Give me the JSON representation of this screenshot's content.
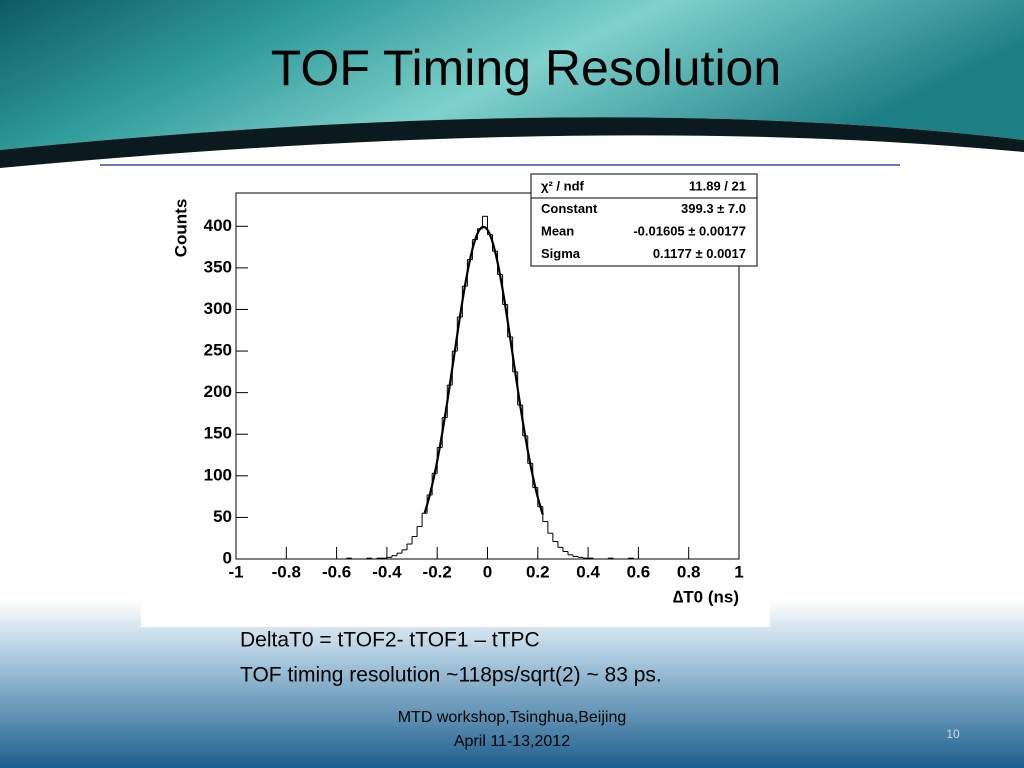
{
  "slide": {
    "title": "TOF Timing Resolution",
    "body": [
      "DeltaT0 = tTOF2- tTOF1 – tTPC",
      "TOF timing resolution ~118ps/sqrt(2) ~ 83 ps."
    ],
    "footer": [
      "MTD workshop,Tsinghua,Beijing",
      "April 11-13,2012"
    ],
    "page_number": "10"
  },
  "chart_data": {
    "type": "histogram",
    "x_label": "∆T0 (ns)",
    "y_label": "Counts",
    "bins": [
      -1,
      -0.98,
      -0.96,
      -0.94,
      -0.92,
      -0.9,
      -0.88,
      -0.86,
      -0.84,
      -0.82,
      -0.8,
      -0.78,
      -0.76,
      -0.74,
      -0.72,
      -0.7,
      -0.68,
      -0.66,
      -0.64,
      -0.62,
      -0.6,
      -0.58,
      -0.56,
      -0.54,
      -0.52,
      -0.5,
      -0.48,
      -0.46,
      -0.44,
      -0.42,
      -0.4,
      -0.38,
      -0.36,
      -0.34,
      -0.32,
      -0.3,
      -0.28,
      -0.26,
      -0.24,
      -0.22,
      -0.2,
      -0.18,
      -0.16,
      -0.14,
      -0.12,
      -0.1,
      -0.08,
      -0.06,
      -0.04,
      -0.02,
      0,
      0.02,
      0.04,
      0.06,
      0.08,
      0.1,
      0.12,
      0.14,
      0.16,
      0.18,
      0.2,
      0.22,
      0.24,
      0.26,
      0.28,
      0.3,
      0.32,
      0.34,
      0.36,
      0.38,
      0.4,
      0.42,
      0.44,
      0.46,
      0.48,
      0.5,
      0.52,
      0.54,
      0.56,
      0.58,
      0.6,
      0.62,
      0.64,
      0.66,
      0.68,
      0.7,
      0.72,
      0.74,
      0.76,
      0.78,
      0.8,
      0.82,
      0.84,
      0.86,
      0.88,
      0.9,
      0.92,
      0.94,
      0.96,
      0.98,
      1
    ],
    "values": [
      0,
      0,
      0,
      0,
      0,
      0,
      0,
      0,
      0,
      0,
      0,
      0,
      0,
      0,
      0,
      0,
      0,
      0,
      0,
      0,
      0,
      0,
      1,
      0,
      0,
      0,
      1,
      0,
      1,
      1,
      2,
      4,
      7,
      11,
      18,
      27,
      39,
      55,
      77,
      103,
      134,
      170,
      209,
      250,
      291,
      328,
      360,
      384,
      397,
      412,
      390,
      370,
      342,
      306,
      267,
      225,
      185,
      148,
      115,
      86,
      63,
      45,
      31,
      21,
      14,
      9,
      5,
      3,
      2,
      1,
      1,
      0,
      0,
      0,
      1,
      0,
      0,
      0,
      1,
      0,
      0,
      0,
      0,
      0,
      0,
      0,
      0,
      0,
      0,
      0,
      0,
      0,
      0,
      0,
      0,
      0,
      0,
      0,
      0,
      0
    ],
    "color": "#000000",
    "fit": {
      "constant": 399.3,
      "mean": -0.01605,
      "sigma": 0.1177,
      "range": [
        -0.25,
        0.22
      ]
    },
    "stats": [
      {
        "label": "χ² / ndf",
        "value": "11.89 / 21"
      },
      {
        "label": "Constant",
        "value": "399.3 ± 7.0"
      },
      {
        "label": "Mean",
        "value": "-0.01605 ± 0.00177"
      },
      {
        "label": "Sigma",
        "value": "0.1177 ± 0.0017"
      }
    ],
    "xlim": [
      -1,
      1
    ],
    "ylim": [
      0,
      440
    ],
    "xticks": [
      -1,
      -0.8,
      -0.6,
      -0.4,
      -0.2,
      0,
      0.2,
      0.4,
      0.6,
      0.8,
      1
    ],
    "yticks": [
      0,
      50,
      100,
      150,
      200,
      250,
      300,
      350,
      400
    ]
  }
}
